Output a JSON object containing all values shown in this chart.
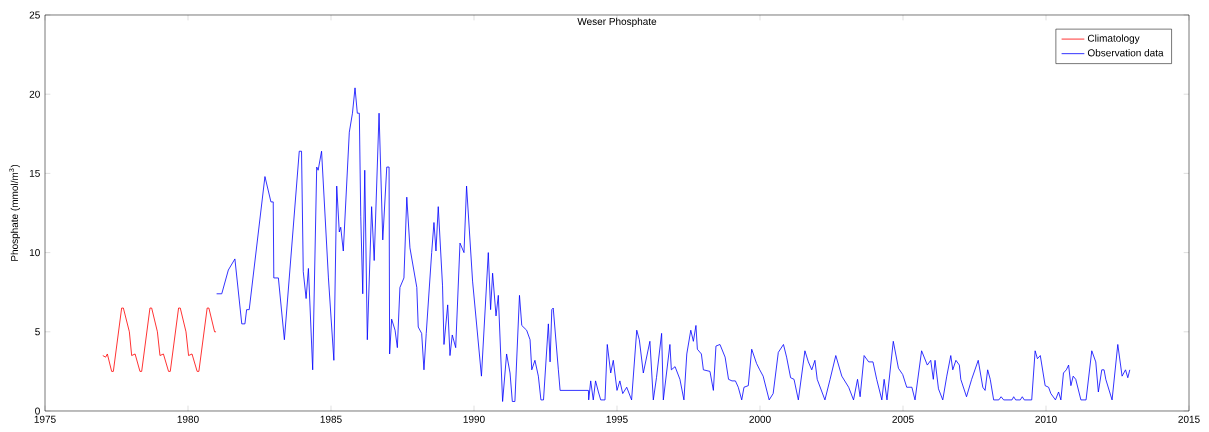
{
  "chart_data": {
    "type": "line",
    "title": "Weser Phosphate",
    "ylabel": "Phosphate (mmol/m$^{3}$)",
    "xlim": [
      1975,
      2015
    ],
    "xticks": [
      1975,
      1980,
      1985,
      1990,
      1995,
      2000,
      2005,
      2010,
      2015
    ],
    "ylim": [
      0,
      25
    ],
    "yticks": [
      0,
      5,
      10,
      15,
      20,
      25
    ],
    "legend": "top right",
    "grid": false,
    "marker": "none",
    "line_style": "solid",
    "series": [
      {
        "name": "Climatology",
        "color": "#ff0000",
        "x": [
          1977.02,
          1977.12,
          1977.18,
          1977.33,
          1977.39,
          1977.68,
          1977.74,
          1977.95,
          1978.03,
          1978.15,
          1978.32,
          1978.38,
          1978.67,
          1978.73,
          1978.93,
          1979.02,
          1979.14,
          1979.32,
          1979.38,
          1979.67,
          1979.73,
          1979.93,
          1980.02,
          1980.14,
          1980.32,
          1980.38,
          1980.67,
          1980.73,
          1980.93,
          1980.98
        ],
        "values": [
          3.5,
          3.4,
          3.6,
          2.5,
          2.5,
          6.5,
          6.5,
          5.0,
          3.5,
          3.6,
          2.5,
          2.5,
          6.5,
          6.5,
          5.0,
          3.5,
          3.6,
          2.5,
          2.5,
          6.5,
          6.5,
          5.0,
          3.5,
          3.6,
          2.5,
          2.5,
          6.5,
          6.5,
          5.0,
          5.0
        ]
      },
      {
        "name": "Observation data",
        "color": "#0000ff",
        "x": [
          1981.0,
          1981.18,
          1981.41,
          1981.64,
          1981.88,
          1981.99,
          1982.05,
          1982.14,
          1982.69,
          1982.9,
          1982.98,
          1983.0,
          1983.16,
          1983.37,
          1983.89,
          1983.97,
          1984.03,
          1984.13,
          1984.21,
          1984.36,
          1984.5,
          1984.55,
          1984.67,
          1984.91,
          1985.1,
          1985.2,
          1985.29,
          1985.34,
          1985.43,
          1985.64,
          1985.75,
          1985.84,
          1985.92,
          1985.99,
          1986.04,
          1986.11,
          1986.18,
          1986.27,
          1986.42,
          1986.51,
          1986.68,
          1986.81,
          1986.95,
          1987.03,
          1987.05,
          1987.12,
          1987.24,
          1987.32,
          1987.41,
          1987.55,
          1987.65,
          1987.76,
          1988.0,
          1988.05,
          1988.17,
          1988.25,
          1988.33,
          1988.52,
          1988.6,
          1988.67,
          1988.75,
          1988.9,
          1988.95,
          1989.08,
          1989.16,
          1989.24,
          1989.36,
          1989.51,
          1989.65,
          1989.74,
          1989.95,
          1990.26,
          1990.5,
          1990.58,
          1990.65,
          1990.77,
          1990.85,
          1991.0,
          1991.14,
          1991.26,
          1991.34,
          1991.43,
          1991.59,
          1991.67,
          1991.84,
          1991.96,
          1992.02,
          1992.13,
          1992.25,
          1992.34,
          1992.43,
          1992.6,
          1992.66,
          1992.72,
          1992.77,
          1992.95,
          1993.01,
          1994.0,
          1994.01,
          1994.08,
          1994.17,
          1994.25,
          1994.35,
          1994.43,
          1994.58,
          1994.66,
          1994.78,
          1994.87,
          1995.0,
          1995.1,
          1995.2,
          1995.34,
          1995.51,
          1995.69,
          1995.78,
          1995.92,
          1996.15,
          1996.27,
          1996.38,
          1996.56,
          1996.62,
          1996.85,
          1996.9,
          1997.03,
          1997.2,
          1997.34,
          1997.44,
          1997.58,
          1997.67,
          1997.76,
          1997.81,
          1997.95,
          1998.02,
          1998.25,
          1998.37,
          1998.46,
          1998.6,
          1998.78,
          1998.9,
          1999.02,
          1999.14,
          1999.24,
          1999.36,
          1999.44,
          1999.59,
          1999.71,
          1999.88,
          1999.99,
          2000.11,
          2000.32,
          2000.46,
          2000.64,
          2000.82,
          2000.93,
          2001.07,
          2001.19,
          2001.34,
          2001.57,
          2001.69,
          2001.81,
          2001.92,
          2002.0,
          2002.27,
          2002.45,
          2002.65,
          2002.86,
          2003.1,
          2003.27,
          2003.41,
          2003.5,
          2003.64,
          2003.8,
          2003.95,
          2004.08,
          2004.26,
          2004.34,
          2004.44,
          2004.66,
          2004.84,
          2004.99,
          2005.13,
          2005.31,
          2005.42,
          2005.65,
          2005.85,
          2005.97,
          2006.06,
          2006.12,
          2006.24,
          2006.39,
          2006.53,
          2006.67,
          2006.74,
          2006.85,
          2006.97,
          2007.02,
          2007.22,
          2007.4,
          2007.63,
          2007.79,
          2007.87,
          2007.96,
          2008.05,
          2008.17,
          2008.35,
          2008.43,
          2008.52,
          2008.81,
          2008.87,
          2008.94,
          2009.1,
          2009.17,
          2009.24,
          2009.5,
          2009.62,
          2009.7,
          2009.8,
          2009.97,
          2010.09,
          2010.17,
          2010.33,
          2010.44,
          2010.52,
          2010.61,
          2010.71,
          2010.79,
          2010.87,
          2010.95,
          2011.04,
          2011.22,
          2011.4,
          2011.6,
          2011.74,
          2011.83,
          2011.95,
          2012.03,
          2012.09,
          2012.31,
          2012.51,
          2012.66,
          2012.78,
          2012.86,
          2012.93
        ],
        "values": [
          7.4,
          7.4,
          8.9,
          9.6,
          5.5,
          5.5,
          6.4,
          6.4,
          14.8,
          13.2,
          13.2,
          8.4,
          8.4,
          4.5,
          16.4,
          16.4,
          8.8,
          7.1,
          9.0,
          2.6,
          15.4,
          15.2,
          16.4,
          8.4,
          3.2,
          14.2,
          11.3,
          11.6,
          10.1,
          17.6,
          18.8,
          20.4,
          18.8,
          18.8,
          12.3,
          7.4,
          15.2,
          4.5,
          12.9,
          9.5,
          18.8,
          10.8,
          15.4,
          15.4,
          3.6,
          5.8,
          5.1,
          4.0,
          7.8,
          8.4,
          13.5,
          10.3,
          7.8,
          5.3,
          4.9,
          2.6,
          4.9,
          10.0,
          11.9,
          10.1,
          12.9,
          7.9,
          4.2,
          6.7,
          3.5,
          4.8,
          4.0,
          10.6,
          10.0,
          14.2,
          8.2,
          2.2,
          10.0,
          6.4,
          8.7,
          6.0,
          7.3,
          0.6,
          3.6,
          2.4,
          0.6,
          0.6,
          7.3,
          5.4,
          5.1,
          4.5,
          2.6,
          3.2,
          2.2,
          0.7,
          0.7,
          5.5,
          3.1,
          6.4,
          6.5,
          2.6,
          1.3,
          1.3,
          0.7,
          1.9,
          0.7,
          1.9,
          1.2,
          0.7,
          0.7,
          4.2,
          2.4,
          3.2,
          1.3,
          1.9,
          1.1,
          1.5,
          0.7,
          5.1,
          4.5,
          2.4,
          4.4,
          0.7,
          2.1,
          4.9,
          0.7,
          4.2,
          2.6,
          2.8,
          2.0,
          0.7,
          3.6,
          5.1,
          4.4,
          5.4,
          3.9,
          3.6,
          2.6,
          2.5,
          1.3,
          4.1,
          4.2,
          3.4,
          2.0,
          1.9,
          1.9,
          1.5,
          0.7,
          1.5,
          1.6,
          3.9,
          3.0,
          2.6,
          2.2,
          0.7,
          1.1,
          3.7,
          4.2,
          3.4,
          2.1,
          2.0,
          0.7,
          3.8,
          3.1,
          2.6,
          3.2,
          2.0,
          0.7,
          2.0,
          3.5,
          2.2,
          1.5,
          0.7,
          2.0,
          0.9,
          3.5,
          3.1,
          3.1,
          2.0,
          0.7,
          2.0,
          0.7,
          4.4,
          2.7,
          2.3,
          1.5,
          1.5,
          0.7,
          3.8,
          2.9,
          3.2,
          2.0,
          3.2,
          1.4,
          0.7,
          2.2,
          3.5,
          2.6,
          3.2,
          2.9,
          2.0,
          0.9,
          2.0,
          3.2,
          1.5,
          1.3,
          2.6,
          2.0,
          0.7,
          0.7,
          0.9,
          0.7,
          0.7,
          0.9,
          0.7,
          0.7,
          0.9,
          0.7,
          0.7,
          3.8,
          3.3,
          3.5,
          1.6,
          1.5,
          1.1,
          0.7,
          1.2,
          0.7,
          2.4,
          2.6,
          2.9,
          1.6,
          2.2,
          2.0,
          0.7,
          0.7,
          3.8,
          3.1,
          1.2,
          2.6,
          2.6,
          2.0,
          0.7,
          4.2,
          2.2,
          2.6,
          2.1,
          2.6
        ]
      }
    ]
  }
}
